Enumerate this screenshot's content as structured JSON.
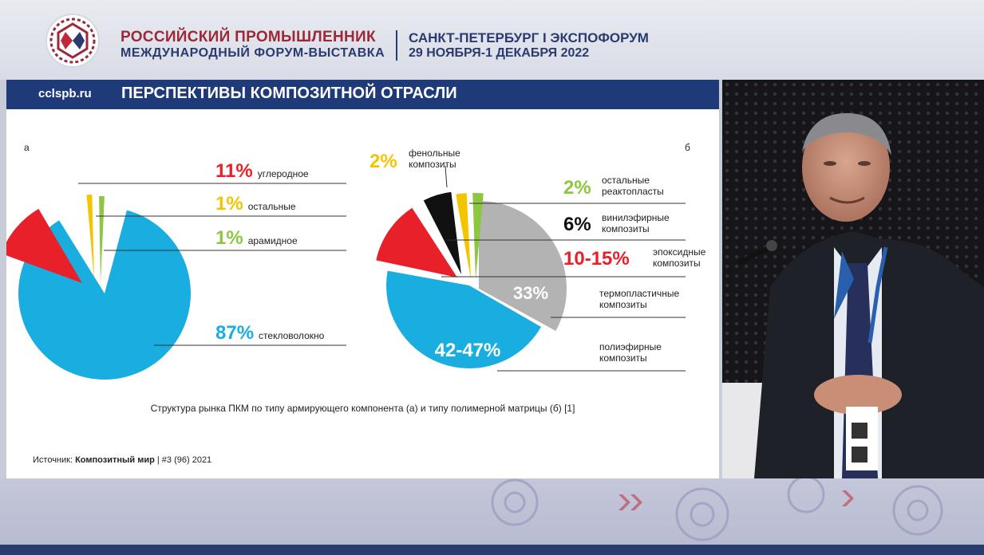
{
  "header": {
    "forum_line1": "РОССИЙСКИЙ ПРОМЫШЛЕННИК",
    "forum_line2": "МЕЖДУНАРОДНЫЙ ФОРУМ-ВЫСТАВКА",
    "city": "САНКТ-ПЕТЕРБУРГ I ЭКСПОФОРУМ",
    "dates": "29 НОЯБРЯ-1 ДЕКАБРЯ 2022"
  },
  "slide": {
    "site": "cclspb.ru",
    "title": "ПЕРСПЕКТИВЫ КОМПОЗИТНОЙ ОТРАСЛИ",
    "caption": "Структура рынка ПКМ по типу армирующего компонента (а) и типу полимерной матрицы (б) [1]",
    "source_prefix": "Источник: ",
    "source_name": "Композитный мир",
    "source_suffix": " | #3 (96) 2021"
  },
  "chart_data": [
    {
      "type": "pie",
      "panel_label": "а",
      "slices": [
        {
          "pct": "87%",
          "value": 87,
          "label": "стекловолокно",
          "color": "#1aaee0"
        },
        {
          "pct": "11%",
          "value": 11,
          "label": "углеродное",
          "color": "#e8202a"
        },
        {
          "pct": "1%",
          "value": 1,
          "label": "остальные",
          "color": "#f5c400"
        },
        {
          "pct": "1%",
          "value": 1,
          "label": "арамидное",
          "color": "#8dc63f"
        }
      ]
    },
    {
      "type": "pie",
      "panel_label": "б",
      "slices": [
        {
          "pct": "33%",
          "value": 33,
          "label1": "термопластичные",
          "label2": "композиты",
          "color": "#b3b3b3"
        },
        {
          "pct": "42-47%",
          "value": 44.5,
          "label1": "полиэфирные",
          "label2": "композиты",
          "color": "#1aaee0"
        },
        {
          "pct": "10-15%",
          "value": 12.5,
          "label1": "эпоксидные",
          "label2": "композиты",
          "color": "#e8202a"
        },
        {
          "pct": "6%",
          "value": 6,
          "label1": "винилэфирные",
          "label2": "композиты",
          "color": "#111111"
        },
        {
          "pct": "2%",
          "value": 2,
          "label1": "фенольные",
          "label2": "композиты",
          "color": "#f5c400"
        },
        {
          "pct": "2%",
          "value": 2,
          "label1": "остальные",
          "label2": "реактопласты",
          "color": "#8dc63f"
        }
      ]
    }
  ]
}
